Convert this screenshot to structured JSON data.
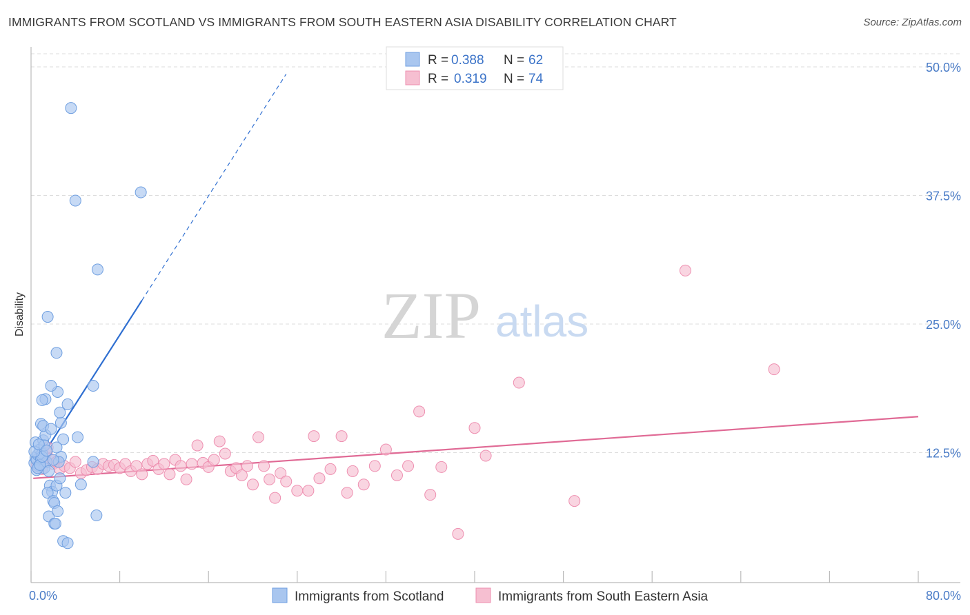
{
  "header": {
    "title": "IMMIGRANTS FROM SCOTLAND VS IMMIGRANTS FROM SOUTH EASTERN ASIA DISABILITY CORRELATION CHART",
    "source": "Source: ZipAtlas.com"
  },
  "watermark": {
    "zip": "ZIP",
    "atlas": "atlas"
  },
  "colors": {
    "scotland_fill": "#a9c6ef",
    "scotland_stroke": "#6f9fe0",
    "scotland_line": "#2f6fd1",
    "sea_fill": "#f6bfd1",
    "sea_stroke": "#ee8fb0",
    "sea_line": "#e06a95",
    "grid": "#dddddd",
    "tick_text": "#4a7cc7"
  },
  "legend": {
    "rows": [
      {
        "r_label": "R =",
        "r_value": "0.388",
        "n_label": "N =",
        "n_value": "62",
        "series": "scotland"
      },
      {
        "r_label": "R =",
        "r_value": "0.319",
        "n_label": "N =",
        "n_value": "74",
        "series": "sea"
      }
    ]
  },
  "chart_data": {
    "type": "scatter",
    "ylabel": "Disability",
    "xlim": [
      0,
      80
    ],
    "ylim": [
      0,
      53
    ],
    "y_ticks": [
      {
        "value": 12.5,
        "label": "12.5%"
      },
      {
        "value": 25.0,
        "label": "25.0%"
      },
      {
        "value": 37.5,
        "label": "37.5%"
      },
      {
        "value": 50.0,
        "label": "50.0%"
      }
    ],
    "x_tick_values": [
      0,
      8,
      16,
      24,
      32,
      40,
      48,
      56,
      64,
      72,
      80
    ],
    "x_tick_labels": [
      {
        "value": 0,
        "label": "0.0%"
      },
      {
        "value": 80,
        "label": "80.0%"
      }
    ],
    "grid": true,
    "series": [
      {
        "name": "Immigrants from Scotland",
        "color": "#a9c6ef",
        "trend": {
          "x0": 0.2,
          "y0": 10.8,
          "x1": 10.0,
          "y1": 27.3,
          "dash_to_x": 23.0,
          "dash_to_y": 49.3
        },
        "points": [
          [
            0.3,
            11.5
          ],
          [
            0.4,
            12.0
          ],
          [
            0.5,
            11.8
          ],
          [
            0.6,
            12.3
          ],
          [
            0.4,
            13.5
          ],
          [
            0.7,
            11.2
          ],
          [
            0.8,
            12.8
          ],
          [
            0.5,
            10.8
          ],
          [
            0.9,
            11.9
          ],
          [
            1.0,
            12.4
          ],
          [
            1.1,
            13.7
          ],
          [
            1.2,
            11.0
          ],
          [
            1.3,
            14.2
          ],
          [
            1.4,
            11.6
          ],
          [
            1.6,
            10.7
          ],
          [
            1.7,
            9.3
          ],
          [
            1.9,
            8.7
          ],
          [
            1.5,
            8.6
          ],
          [
            2.0,
            7.8
          ],
          [
            2.1,
            7.6
          ],
          [
            1.6,
            6.3
          ],
          [
            2.4,
            6.8
          ],
          [
            2.1,
            5.6
          ],
          [
            2.2,
            5.6
          ],
          [
            2.9,
            3.9
          ],
          [
            3.3,
            3.7
          ],
          [
            2.3,
            9.3
          ],
          [
            2.6,
            10.0
          ],
          [
            3.1,
            8.6
          ],
          [
            2.7,
            12.1
          ],
          [
            2.9,
            13.8
          ],
          [
            2.7,
            15.4
          ],
          [
            2.6,
            16.4
          ],
          [
            3.3,
            17.2
          ],
          [
            2.4,
            18.4
          ],
          [
            1.8,
            19.0
          ],
          [
            1.3,
            17.7
          ],
          [
            1.0,
            17.6
          ],
          [
            0.9,
            15.3
          ],
          [
            1.1,
            15.1
          ],
          [
            1.2,
            13.2
          ],
          [
            1.8,
            14.8
          ],
          [
            2.3,
            13.0
          ],
          [
            2.5,
            11.6
          ],
          [
            2.0,
            11.8
          ],
          [
            4.2,
            14.0
          ],
          [
            4.5,
            9.4
          ],
          [
            5.6,
            19.0
          ],
          [
            5.9,
            6.4
          ],
          [
            5.6,
            11.6
          ],
          [
            6.0,
            30.3
          ],
          [
            9.9,
            37.8
          ],
          [
            3.6,
            46.0
          ],
          [
            4.0,
            37.0
          ],
          [
            1.5,
            25.7
          ],
          [
            2.3,
            22.2
          ],
          [
            0.6,
            11.0
          ],
          [
            0.8,
            11.3
          ],
          [
            1.0,
            12.1
          ],
          [
            0.3,
            12.6
          ],
          [
            0.7,
            13.3
          ],
          [
            1.4,
            12.7
          ]
        ]
      },
      {
        "name": "Immigrants from South Eastern Asia",
        "color": "#f6bfd1",
        "trend": {
          "x0": 0.2,
          "y0": 10.0,
          "x1": 80.0,
          "y1": 16.0
        },
        "points": [
          [
            0.5,
            11.2
          ],
          [
            0.8,
            12.2
          ],
          [
            1.0,
            10.9
          ],
          [
            1.2,
            11.7
          ],
          [
            1.4,
            12.5
          ],
          [
            1.5,
            13.0
          ],
          [
            1.7,
            11.9
          ],
          [
            2.0,
            11.4
          ],
          [
            2.3,
            11.6
          ],
          [
            2.6,
            10.9
          ],
          [
            3.0,
            11.2
          ],
          [
            3.5,
            11.0
          ],
          [
            4.0,
            11.6
          ],
          [
            4.5,
            10.5
          ],
          [
            5.0,
            10.8
          ],
          [
            5.5,
            11.1
          ],
          [
            6.0,
            10.9
          ],
          [
            6.5,
            11.4
          ],
          [
            7.0,
            11.2
          ],
          [
            7.5,
            11.3
          ],
          [
            8.0,
            11.0
          ],
          [
            8.5,
            11.4
          ],
          [
            9.0,
            10.7
          ],
          [
            9.5,
            11.2
          ],
          [
            10.0,
            10.4
          ],
          [
            10.5,
            11.4
          ],
          [
            11.0,
            11.7
          ],
          [
            11.5,
            10.9
          ],
          [
            12.0,
            11.4
          ],
          [
            12.5,
            10.4
          ],
          [
            13.0,
            11.8
          ],
          [
            13.5,
            11.2
          ],
          [
            14.0,
            9.9
          ],
          [
            14.5,
            11.4
          ],
          [
            15.0,
            13.2
          ],
          [
            15.5,
            11.5
          ],
          [
            16.0,
            11.1
          ],
          [
            16.5,
            11.8
          ],
          [
            17.0,
            13.6
          ],
          [
            17.5,
            12.4
          ],
          [
            18.0,
            10.7
          ],
          [
            18.5,
            11.0
          ],
          [
            19.0,
            10.3
          ],
          [
            19.5,
            11.2
          ],
          [
            20.0,
            9.4
          ],
          [
            20.5,
            14.0
          ],
          [
            21.0,
            11.2
          ],
          [
            21.5,
            9.9
          ],
          [
            22.0,
            8.1
          ],
          [
            22.5,
            10.5
          ],
          [
            23.0,
            9.7
          ],
          [
            24.0,
            8.8
          ],
          [
            25.0,
            8.8
          ],
          [
            25.5,
            14.1
          ],
          [
            26.0,
            10.0
          ],
          [
            27.0,
            10.9
          ],
          [
            28.0,
            14.1
          ],
          [
            28.5,
            8.6
          ],
          [
            29.0,
            10.7
          ],
          [
            30.0,
            9.4
          ],
          [
            31.0,
            11.2
          ],
          [
            32.0,
            12.8
          ],
          [
            33.0,
            10.3
          ],
          [
            34.0,
            11.2
          ],
          [
            35.0,
            16.5
          ],
          [
            36.0,
            8.4
          ],
          [
            37.0,
            11.1
          ],
          [
            38.5,
            4.6
          ],
          [
            40.0,
            14.9
          ],
          [
            41.0,
            12.2
          ],
          [
            44.0,
            19.3
          ],
          [
            49.0,
            7.8
          ],
          [
            59.0,
            30.2
          ],
          [
            67.0,
            20.6
          ]
        ]
      }
    ]
  },
  "bottom_legend": [
    {
      "label": "Immigrants from Scotland",
      "series": "scotland"
    },
    {
      "label": "Immigrants from South Eastern Asia",
      "series": "sea"
    }
  ]
}
